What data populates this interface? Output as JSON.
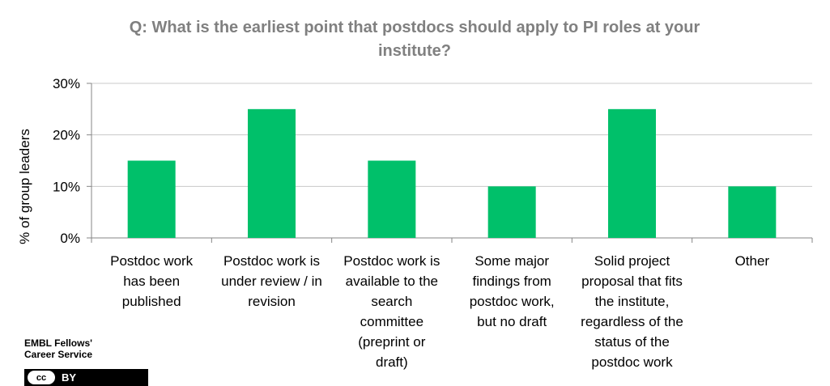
{
  "chart_data": {
    "type": "bar",
    "title_lines": [
      "Q: What is the earliest point that postdocs should apply to PI roles at your",
      "institute?"
    ],
    "ylabel": "% of group leaders",
    "xlabel": "",
    "ylim": [
      0,
      30
    ],
    "yticks": [
      "0%",
      "10%",
      "20%",
      "30%"
    ],
    "grid": true,
    "bar_color": "#00C06A",
    "categories": [
      [
        "Postdoc work",
        "has been",
        "published"
      ],
      [
        "Postdoc work is",
        "under review / in",
        "revision"
      ],
      [
        "Postdoc work is",
        "available to the",
        "search",
        "committee",
        "(preprint or",
        "draft)"
      ],
      [
        "Some major",
        "findings from",
        "postdoc work,",
        "but no draft"
      ],
      [
        "Solid project",
        "proposal that fits",
        "the institute,",
        "regardless of the",
        "status of the",
        "postdoc work"
      ],
      [
        "Other"
      ]
    ],
    "values": [
      15,
      25,
      15,
      10,
      25,
      10
    ]
  },
  "footer": {
    "org_line1": "EMBL Fellows'",
    "org_line2": "Career Service",
    "license_cc": "cc",
    "license_by": "BY"
  }
}
